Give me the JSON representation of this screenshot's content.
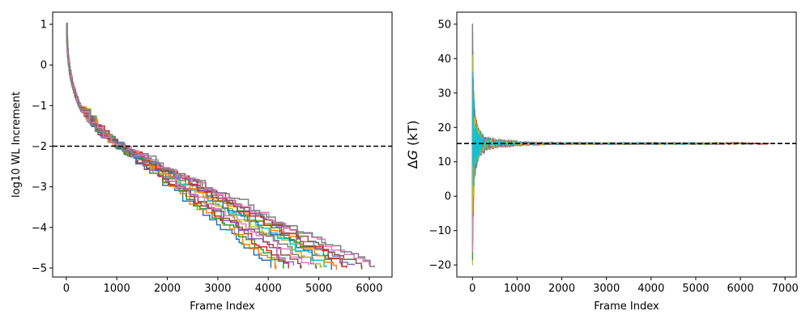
{
  "chart_data": [
    {
      "type": "line",
      "xlabel": "Frame Index",
      "ylabel": "log10 WL Increment",
      "xlim": [
        -270,
        6450
      ],
      "ylim": [
        -5.22,
        1.3
      ],
      "xticks": [
        0,
        1000,
        2000,
        3000,
        4000,
        5000,
        6000
      ],
      "yticks": [
        1,
        0,
        -1,
        -2,
        -3,
        -4,
        -5
      ],
      "xtick_labels": [
        "0",
        "1000",
        "2000",
        "3000",
        "4000",
        "5000",
        "6000"
      ],
      "ytick_labels": [
        "1",
        "0",
        "−1",
        "−2",
        "−3",
        "−4",
        "−5"
      ],
      "reference_line": {
        "y": -2,
        "style": "dashed",
        "color": "#000000"
      },
      "grid": false,
      "series_description": "many step-wise decreasing curves from (0,1) to about -5 between frames 4000 and 6100",
      "series_end_x": [
        4050,
        4150,
        4300,
        4400,
        4500,
        4650,
        4800,
        4950,
        5050,
        5150,
        5250,
        5350,
        5450,
        5550,
        5700,
        5850,
        6000,
        6100
      ],
      "colors": [
        "#1f77b4",
        "#ff7f0e",
        "#2ca02c",
        "#d62728",
        "#9467bd",
        "#8c564b",
        "#e377c2",
        "#7f7f7f",
        "#bcbd22",
        "#17becf"
      ]
    },
    {
      "type": "line",
      "xlabel": "Frame Index",
      "ylabel": "ΔG (kT)",
      "ylabel_symbol": "Δ",
      "ylabel_var": "G",
      "ylabel_unit": " (kT)",
      "xlim": [
        -350,
        7250
      ],
      "ylim": [
        -23.5,
        53.5
      ],
      "xticks": [
        0,
        1000,
        2000,
        3000,
        4000,
        5000,
        6000,
        7000
      ],
      "yticks": [
        50,
        40,
        30,
        20,
        10,
        0,
        -10,
        -20
      ],
      "xtick_labels": [
        "0",
        "1000",
        "2000",
        "3000",
        "4000",
        "5000",
        "6000",
        "7000"
      ],
      "ytick_labels": [
        "50",
        "40",
        "30",
        "20",
        "10",
        "0",
        "−10",
        "−20"
      ],
      "reference_line": {
        "y": 15.3,
        "style": "dashed",
        "color": "#000000"
      },
      "grid": false,
      "converged_value": 15.3,
      "spike_max": 50,
      "spike_min": -20,
      "colors": [
        "#1f77b4",
        "#ff7f0e",
        "#2ca02c",
        "#d62728",
        "#9467bd",
        "#8c564b",
        "#e377c2",
        "#7f7f7f",
        "#bcbd22",
        "#17becf"
      ]
    }
  ]
}
